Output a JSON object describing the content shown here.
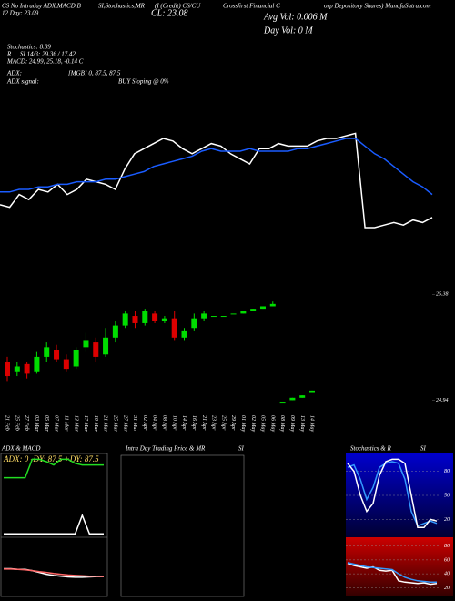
{
  "header": {
    "l1a": "CS No Intraday ADX,MACD,B",
    "l1b": "SI,Stochastics,MR",
    "l1c": "(I (Credit) CS/CU",
    "l1d": "Crossfirst Financial C",
    "l1e": "orp Depository Shares) MunafaSutra.com",
    "l2a": "12 Day: 23.09",
    "l2b": "CL: 23.08",
    "avg": "Avg Vol: 0.006  M",
    "dayvol": "Day Vol: 0  M",
    "stoch": "Stochastics: 8.89",
    "r": "R",
    "si": "SI 14/3: 29.36 / 17.42",
    "macd": "MACD: 24.99, 25.18, -0.14  C",
    "adx": "ADX:",
    "mgb": "[MGB] 0, 87.5, 87.5",
    "adxsig": "ADX  signal:",
    "buy": "BUY Sloping @ 0%",
    "p1": "ADX  & MACD",
    "p1in": "ADX: 0  -DY: 87.5 +DY: 87.5",
    "p2": "Intra  Day Trading Price  & MR",
    "p2b": "SI",
    "p3": "Stochastics & R",
    "p3b": "SI"
  },
  "chart_data": [
    {
      "type": "line",
      "ylim": [
        24.6,
        25.6
      ],
      "series": [
        {
          "color": "#ffffff",
          "values": [
            24.94,
            24.93,
            24.98,
            24.96,
            25.0,
            24.99,
            25.02,
            24.98,
            25.0,
            25.04,
            25.03,
            25.02,
            25.0,
            25.08,
            25.14,
            25.16,
            25.18,
            25.2,
            25.19,
            25.16,
            25.14,
            25.16,
            25.18,
            25.17,
            25.14,
            25.12,
            25.1,
            25.16,
            25.16,
            25.18,
            25.17,
            25.17,
            25.17,
            25.19,
            25.2,
            25.2,
            25.21,
            25.22,
            24.85,
            24.85,
            24.86,
            24.87,
            24.86,
            24.88,
            24.87,
            24.89
          ]
        },
        {
          "color": "#1a5cff",
          "values": [
            24.99,
            24.99,
            25.0,
            25.0,
            25.01,
            25.01,
            25.02,
            25.02,
            25.03,
            25.03,
            25.03,
            25.04,
            25.04,
            25.05,
            25.06,
            25.07,
            25.09,
            25.1,
            25.11,
            25.12,
            25.13,
            25.15,
            25.16,
            25.15,
            25.15,
            25.15,
            25.16,
            25.15,
            25.15,
            25.15,
            25.15,
            25.16,
            25.16,
            25.17,
            25.18,
            25.19,
            25.2,
            25.2,
            25.17,
            25.14,
            25.12,
            25.09,
            25.06,
            25.03,
            25.01,
            24.98
          ]
        }
      ]
    },
    {
      "type": "candlestick",
      "ylim": [
        24.9,
        25.4
      ],
      "yticks": [
        25.38,
        24.94
      ],
      "up_color": "#00dd00",
      "down_color": "#dd0000",
      "categories": [
        "21 Feb",
        "25 Feb",
        "27 Feb",
        "03 Mar",
        "05 Mar",
        "07 Mar",
        "11 Mar",
        "13 Mar",
        "17 Mar",
        "19 Mar",
        "21 Mar",
        "25 Mar",
        "27 Mar",
        "31 Mar",
        "02 Apr",
        "04 Apr",
        "08 Apr",
        "10 Apr",
        "14 Apr",
        "16 Apr",
        "21 Apr",
        "23 Apr",
        "25 Apr",
        "29 Apr",
        "01 May",
        "02 May",
        "05 May",
        "06 May",
        "08 May",
        "09 May",
        "13 May",
        "14 May"
      ],
      "open": [
        25.1,
        25.06,
        25.09,
        25.06,
        25.12,
        25.15,
        25.11,
        25.08,
        25.16,
        25.18,
        25.13,
        25.2,
        25.25,
        25.29,
        25.26,
        25.3,
        25.27,
        25.28,
        25.2,
        25.24,
        25.28,
        25.29,
        25.29,
        25.3,
        25.3,
        25.31,
        25.32,
        25.33,
        24.93,
        24.94,
        24.95,
        24.97
      ],
      "close": [
        25.04,
        25.08,
        25.05,
        25.12,
        25.16,
        25.11,
        25.07,
        25.15,
        25.19,
        25.12,
        25.2,
        25.25,
        25.3,
        25.26,
        25.31,
        25.27,
        25.28,
        25.2,
        25.23,
        25.28,
        25.3,
        25.29,
        25.29,
        25.3,
        25.31,
        25.32,
        25.33,
        25.34,
        24.93,
        24.95,
        24.96,
        24.98
      ],
      "high": [
        25.12,
        25.1,
        25.1,
        25.14,
        25.18,
        25.17,
        25.13,
        25.16,
        25.22,
        25.2,
        25.24,
        25.27,
        25.31,
        25.31,
        25.32,
        25.31,
        25.29,
        25.31,
        25.24,
        25.3,
        25.31,
        25.29,
        25.29,
        25.3,
        25.31,
        25.32,
        25.33,
        25.35,
        24.93,
        24.95,
        24.96,
        24.98
      ],
      "low": [
        25.02,
        25.04,
        25.03,
        25.05,
        25.1,
        25.1,
        25.06,
        25.07,
        25.14,
        25.1,
        25.12,
        25.18,
        25.24,
        25.24,
        25.25,
        25.26,
        25.26,
        25.19,
        25.19,
        25.23,
        25.27,
        25.29,
        25.29,
        25.3,
        25.3,
        25.31,
        25.32,
        25.33,
        24.93,
        24.94,
        24.95,
        24.97
      ]
    },
    {
      "type": "line",
      "ylim": [
        0,
        100
      ],
      "series": [
        {
          "color": "#22dd22",
          "values": [
            72,
            72,
            72,
            72,
            95,
            95,
            92,
            88,
            95,
            95,
            90,
            88,
            88,
            88,
            88
          ]
        },
        {
          "color": "#ffffff",
          "values": [
            2,
            2,
            2,
            2,
            2,
            2,
            2,
            2,
            2,
            2,
            2,
            25,
            2,
            2,
            2
          ]
        }
      ]
    },
    {
      "type": "line",
      "ylim": [
        24.5,
        26
      ],
      "series": [
        {
          "color": "#ffffff",
          "values": [
            25.2,
            25.2,
            25.18,
            25.18,
            25.15,
            25.1,
            25.05,
            25.02,
            25.0,
            24.98,
            24.97,
            24.97,
            24.98,
            24.99,
            24.99
          ]
        },
        {
          "color": "#ff6666",
          "values": [
            25.19,
            25.19,
            25.18,
            25.17,
            25.15,
            25.12,
            25.1,
            25.07,
            25.05,
            25.03,
            25.02,
            25.01,
            25.0,
            25.0,
            24.99
          ]
        }
      ]
    },
    {
      "type": "line",
      "ylim": [
        0,
        100
      ],
      "yticks": [
        80,
        50,
        20
      ],
      "grid": true,
      "series": [
        {
          "color": "#3399ff",
          "values": [
            85,
            88,
            70,
            45,
            60,
            85,
            90,
            92,
            90,
            70,
            30,
            12,
            15,
            18,
            15
          ]
        },
        {
          "color": "#ffffff",
          "values": [
            90,
            80,
            50,
            30,
            40,
            75,
            92,
            95,
            95,
            90,
            50,
            10,
            10,
            20,
            18
          ]
        }
      ]
    },
    {
      "type": "line",
      "ylim": [
        10,
        90
      ],
      "yticks": [
        80,
        60,
        40,
        20
      ],
      "grid": true,
      "series": [
        {
          "color": "#ffffff",
          "values": [
            55,
            52,
            50,
            48,
            50,
            45,
            44,
            45,
            30,
            28,
            27,
            26,
            27,
            25,
            26
          ]
        },
        {
          "color": "#3399ff",
          "values": [
            56,
            54,
            52,
            50,
            49,
            48,
            47,
            46,
            40,
            35,
            32,
            30,
            29,
            28,
            28
          ]
        }
      ]
    }
  ]
}
